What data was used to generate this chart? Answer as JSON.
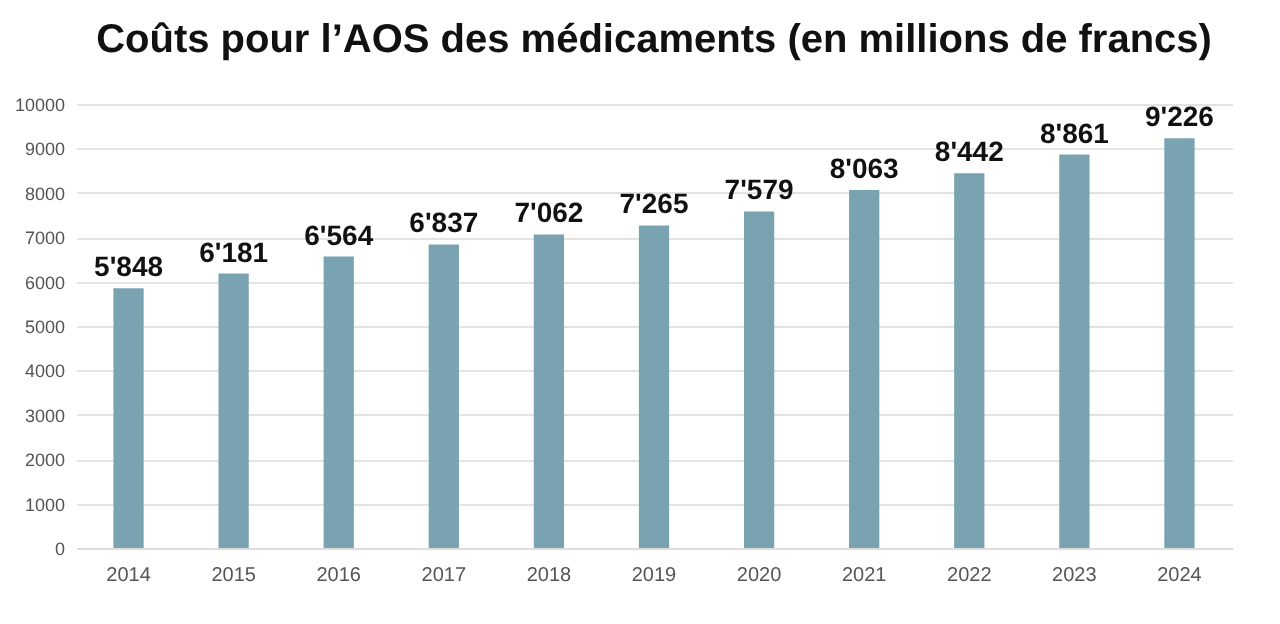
{
  "chart_data": {
    "type": "bar",
    "title": "Coûts pour l’AOS des médicaments (en millions de francs)",
    "categories": [
      "2014",
      "2015",
      "2016",
      "2017",
      "2018",
      "2019",
      "2020",
      "2021",
      "2022",
      "2023",
      "2024"
    ],
    "values": [
      5848,
      6181,
      6564,
      6837,
      7062,
      7265,
      7579,
      8063,
      8442,
      8861,
      9226
    ],
    "value_labels": [
      "5'848",
      "6'181",
      "6'564",
      "6'837",
      "7'062",
      "7'265",
      "7'579",
      "8'063",
      "8'442",
      "8'861",
      "9'226"
    ],
    "color": "#7aa3b2",
    "ylim": [
      0,
      10000
    ],
    "yticks": [
      0,
      1000,
      2000,
      3000,
      4000,
      5000,
      6000,
      7000,
      8000,
      9000,
      10000
    ],
    "grid": "y"
  }
}
